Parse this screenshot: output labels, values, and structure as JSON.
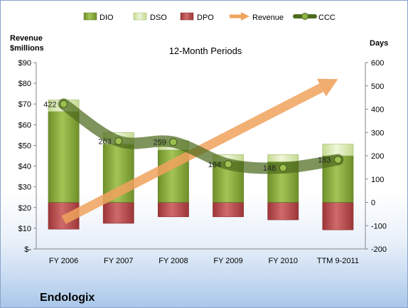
{
  "chart_data": {
    "type": "bar",
    "title": "12-Month Periods",
    "company": "Endologix",
    "left_axis": {
      "title_lines": [
        "Revenue",
        "$millions"
      ],
      "range": [
        0,
        90
      ],
      "ticks": [
        0,
        10,
        20,
        30,
        40,
        50,
        60,
        70,
        80,
        90
      ],
      "tick_labels": [
        "$-",
        "$10",
        "$20",
        "$30",
        "$40",
        "$50",
        "$60",
        "$70",
        "$80",
        "$90"
      ]
    },
    "right_axis": {
      "title": "Days",
      "range": [
        -200,
        600
      ],
      "ticks": [
        -200,
        -100,
        0,
        100,
        200,
        300,
        400,
        500,
        600
      ]
    },
    "categories": [
      "FY 2006",
      "FY 2007",
      "FY 2008",
      "FY 2009",
      "FY 2010",
      "TTM 9-2011"
    ],
    "legend": [
      "DIO",
      "DSO",
      "DPO",
      "Revenue",
      "CCC"
    ],
    "series": [
      {
        "name": "DIO",
        "axis": "right",
        "values": [
          390,
          250,
          225,
          175,
          175,
          200
        ],
        "color": "#86a83a"
      },
      {
        "name": "DSO",
        "axis": "right",
        "values": [
          50,
          50,
          40,
          30,
          30,
          50
        ],
        "color": "#d4e6a6"
      },
      {
        "name": "DPO",
        "axis": "right",
        "values": [
          -115,
          -90,
          -62,
          -62,
          -75,
          -118
        ],
        "color": "#b94a4c"
      },
      {
        "name": "Revenue",
        "axis": "left",
        "values": [
          14,
          25,
          38,
          51,
          65,
          82
        ],
        "color": "#f0a35e"
      },
      {
        "name": "CCC",
        "axis": "right",
        "values": [
          422,
          263,
          259,
          164,
          148,
          183
        ],
        "labels": [
          "422",
          "263",
          "259",
          "164",
          "148",
          "183"
        ],
        "color": "#4e6b1f"
      }
    ]
  }
}
